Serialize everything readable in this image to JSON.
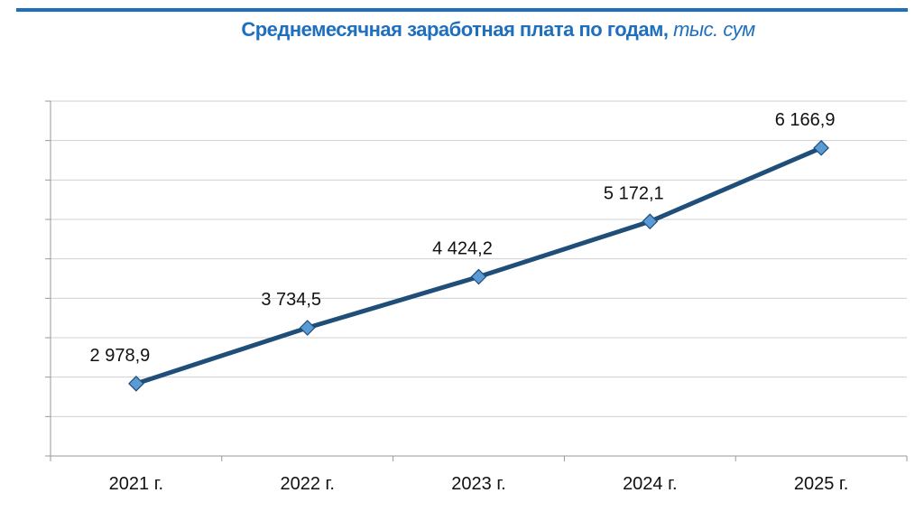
{
  "title": {
    "main": "Среднемесячная заработная плата по годам,",
    "unit": "тыс. сум"
  },
  "colors": {
    "accent": "#1f6fbf",
    "line": "#1f4e79",
    "marker": "#5b9bd5",
    "grid": "#d0d0d0"
  },
  "chart_data": {
    "type": "line",
    "categories": [
      "2021 г.",
      "2022 г.",
      "2023 г.",
      "2024 г.",
      "2025 г."
    ],
    "series": [
      {
        "values": [
          2978.9,
          3734.5,
          4424.2,
          5172.1,
          6166.9
        ],
        "labels": [
          "2 978,9",
          "3 734,5",
          "4 424,2",
          "5 172,1",
          "6 166,9"
        ]
      }
    ],
    "title": "Среднемесячная заработная плата по годам, тыс. сум",
    "xlabel": "",
    "ylabel": "",
    "ylim": [
      2000,
      6800
    ],
    "grid": true,
    "legend": "none",
    "marker": "diamond"
  }
}
